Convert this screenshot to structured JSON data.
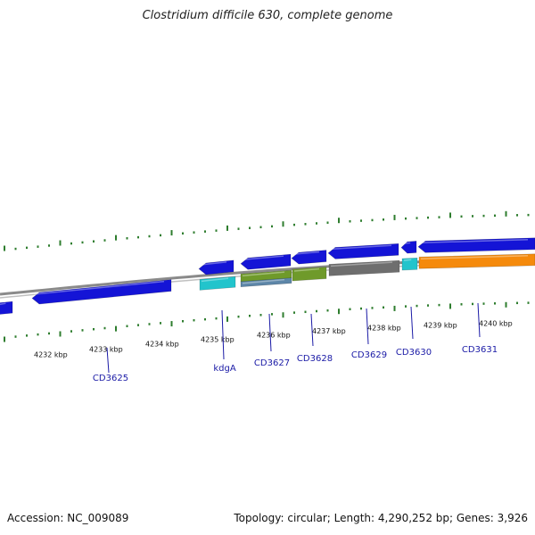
{
  "title": "Clostridium difficile 630, complete genome",
  "accession_text": "Accession: NC_009089",
  "summary_text": "Topology: circular; Length: 4,290,252 bp; Genes: 3,926",
  "colors": {
    "backbone": "#8a8a8a",
    "tick": "#2e7d2e",
    "cds_forward": "#1414d6",
    "cds_reverse": "#1414d6",
    "cog_cyan": "#22c4cc",
    "cog_olive": "#6f9a2a",
    "cog_steel": "#5d86a8",
    "cog_gray": "#6e6e6e",
    "cog_orange": "#f58a0c",
    "label": "#1a1aa6"
  },
  "scale_labels": [
    "4232 kbp",
    "4233 kbp",
    "4234 kbp",
    "4235 kbp",
    "4236 kbp",
    "4237 kbp",
    "4238 kbp",
    "4239 kbp",
    "4240 kbp"
  ],
  "gene_labels": [
    "CD3625",
    "kdgA",
    "CD3627",
    "CD3628",
    "CD3629",
    "CD3630",
    "CD3631"
  ]
}
